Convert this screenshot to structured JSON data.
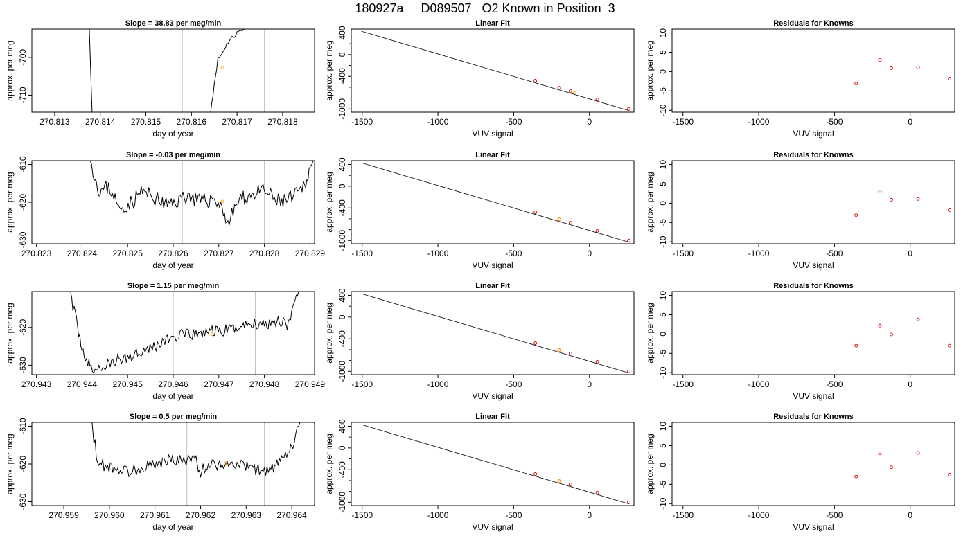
{
  "figure_title": "180927a     D089507   O2 Known in Position  3",
  "colors": {
    "line": "#000000",
    "marker_orange": "#ffa500",
    "marker_red": "#cc0000",
    "vline": "#bfbfbf"
  },
  "chart_data": [
    {
      "panel": "r0c0",
      "type": "line",
      "title": "Slope =  38.83  per meg/min",
      "xlabel": "day of year",
      "ylabel": "approx. per meg",
      "xlim": [
        270.8125,
        270.8187
      ],
      "ylim": [
        -714.5,
        -692.5
      ],
      "xticks": [
        270.813,
        270.814,
        270.815,
        270.816,
        270.817,
        270.818
      ],
      "xtick_labels": [
        "270.813",
        "270.814",
        "270.815",
        "270.816",
        "270.817",
        "270.818"
      ],
      "yticks": [
        -700,
        -710
      ],
      "ytick_labels": [
        "-700",
        "-710"
      ],
      "vlines": [
        270.8158,
        270.8176
      ],
      "trace_seed": 11,
      "trace_noise": 0.8,
      "segments": [
        {
          "x": [
            270.81376,
            270.81382
          ],
          "y": [
            -692.5,
            -714.5
          ]
        },
        {
          "x": [
            270.81642,
            270.8165,
            270.81658,
            270.81667,
            270.81675,
            270.81683,
            270.81692,
            270.817,
            270.81708,
            270.81717
          ],
          "y": [
            -714.5,
            -707,
            -700.5,
            -699,
            -697,
            -695.5,
            -694.5,
            -693.5,
            -692.8,
            -692.5
          ]
        }
      ],
      "points": [
        {
          "x": 270.81668,
          "y": -702.7,
          "color": "orange"
        }
      ]
    },
    {
      "panel": "r0c1",
      "type": "scatter+line",
      "title": "Linear Fit",
      "xlabel": "VUV signal",
      "ylabel": "approx. per meg",
      "xlim": [
        -1572,
        294
      ],
      "ylim": [
        -1060,
        470
      ],
      "xticks": [
        -1500,
        -1000,
        -500,
        0
      ],
      "xtick_labels": [
        "-1500",
        "-1000",
        "-500",
        "0"
      ],
      "yticks": [
        400,
        0,
        -400,
        -1000
      ],
      "ytick_labels": [
        "400",
        "0",
        "-400",
        "-1000"
      ],
      "fit_line": {
        "x": [
          -1505,
          260
        ],
        "y": [
          430,
          -1030
        ]
      },
      "points": [
        {
          "x": -357,
          "y": -480,
          "color": "red"
        },
        {
          "x": -200,
          "y": -610,
          "color": "red"
        },
        {
          "x": -125,
          "y": -672,
          "color": "red"
        },
        {
          "x": -100,
          "y": -696,
          "color": "orange"
        },
        {
          "x": 52,
          "y": -822,
          "color": "red"
        },
        {
          "x": 260,
          "y": -1000,
          "color": "red"
        }
      ]
    },
    {
      "panel": "r0c2",
      "type": "scatter",
      "title": "Residuals for Knowns",
      "xlabel": "VUV signal",
      "ylabel": "approx. per meg",
      "xlim": [
        -1572,
        294
      ],
      "ylim": [
        -10.5,
        11
      ],
      "xticks": [
        -1500,
        -1000,
        -500,
        0
      ],
      "xtick_labels": [
        "-1500",
        "-1000",
        "-500",
        "0"
      ],
      "yticks": [
        10,
        5,
        0,
        -5,
        -10
      ],
      "ytick_labels": [
        "10",
        "5",
        "0",
        "-5",
        "-10"
      ],
      "points": [
        {
          "x": -357,
          "y": -3.1,
          "color": "red"
        },
        {
          "x": -200,
          "y": 3.0,
          "color": "red"
        },
        {
          "x": -125,
          "y": 0.9,
          "color": "red"
        },
        {
          "x": 52,
          "y": 1.1,
          "color": "red"
        },
        {
          "x": 260,
          "y": -1.8,
          "color": "red"
        }
      ]
    },
    {
      "panel": "r1c0",
      "type": "line",
      "title": "Slope =  -0.03  per meg/min",
      "xlabel": "day of year",
      "ylabel": "approx. per meg",
      "xlim": [
        270.8229,
        270.8291
      ],
      "ylim": [
        -631,
        -609
      ],
      "xticks": [
        270.823,
        270.824,
        270.825,
        270.826,
        270.827,
        270.828,
        270.829
      ],
      "xtick_labels": [
        "270.823",
        "270.824",
        "270.825",
        "270.826",
        "270.827",
        "270.828",
        "270.829"
      ],
      "yticks": [
        -610,
        -620,
        -630
      ],
      "ytick_labels": [
        "-610",
        "-620",
        "-630"
      ],
      "vlines": [
        270.8262,
        270.828
      ],
      "trace_seed": 23,
      "trace_noise": 2.6,
      "segments": [
        {
          "x": [
            270.82418,
            270.82424,
            270.82434,
            270.82442,
            270.82458,
            270.8247,
            270.8248,
            270.82492,
            270.8251,
            270.8253,
            270.8256,
            270.8259,
            270.8263,
            270.8266,
            270.8269,
            270.8271,
            270.8272,
            270.8274,
            270.8277,
            270.828,
            270.8283,
            270.8286,
            270.8287,
            270.8288,
            270.82888,
            270.82898,
            270.82907
          ],
          "y": [
            -609,
            -611,
            -616,
            -617,
            -616,
            -618,
            -622,
            -621,
            -620,
            -617,
            -619,
            -621,
            -618,
            -620,
            -619,
            -622,
            -626,
            -620,
            -618,
            -617,
            -620,
            -619,
            -618,
            -617,
            -615,
            -612,
            -609
          ]
        }
      ],
      "points": [
        {
          "x": 270.82708,
          "y": -619.8,
          "color": "orange"
        }
      ]
    },
    {
      "panel": "r1c1",
      "type": "scatter+line",
      "title": "Linear Fit",
      "xlabel": "VUV signal",
      "ylabel": "approx. per meg",
      "xlim": [
        -1572,
        294
      ],
      "ylim": [
        -1060,
        470
      ],
      "xticks": [
        -1500,
        -1000,
        -500,
        0
      ],
      "xtick_labels": [
        "-1500",
        "-1000",
        "-500",
        "0"
      ],
      "yticks": [
        400,
        0,
        -400,
        -1000
      ],
      "ytick_labels": [
        "400",
        "0",
        "-400",
        "-1000"
      ],
      "fit_line": {
        "x": [
          -1505,
          260
        ],
        "y": [
          430,
          -1030
        ]
      },
      "points": [
        {
          "x": -357,
          "y": -480,
          "color": "red"
        },
        {
          "x": -200,
          "y": -610,
          "color": "red"
        },
        {
          "x": -200,
          "y": -612,
          "color": "orange"
        },
        {
          "x": -125,
          "y": -672,
          "color": "red"
        },
        {
          "x": 52,
          "y": -822,
          "color": "red"
        },
        {
          "x": 260,
          "y": -1000,
          "color": "red"
        }
      ]
    },
    {
      "panel": "r1c2",
      "type": "scatter",
      "title": "Residuals for Knowns",
      "xlabel": "VUV signal",
      "ylabel": "approx. per meg",
      "xlim": [
        -1572,
        294
      ],
      "ylim": [
        -10.5,
        11
      ],
      "xticks": [
        -1500,
        -1000,
        -500,
        0
      ],
      "xtick_labels": [
        "-1500",
        "-1000",
        "-500",
        "0"
      ],
      "yticks": [
        10,
        5,
        0,
        -5,
        -10
      ],
      "ytick_labels": [
        "10",
        "5",
        "0",
        "-5",
        "-10"
      ],
      "points": [
        {
          "x": -357,
          "y": -3.1,
          "color": "red"
        },
        {
          "x": -200,
          "y": 3.0,
          "color": "red"
        },
        {
          "x": -125,
          "y": 0.9,
          "color": "red"
        },
        {
          "x": 52,
          "y": 1.1,
          "color": "red"
        },
        {
          "x": 260,
          "y": -1.8,
          "color": "red"
        }
      ]
    },
    {
      "panel": "r2c0",
      "type": "line",
      "title": "Slope =  1.15  per meg/min",
      "xlabel": "day of year",
      "ylabel": "approx. per meg",
      "xlim": [
        270.9429,
        270.9491
      ],
      "ylim": [
        -632.5,
        -610.5
      ],
      "xticks": [
        270.943,
        270.944,
        270.945,
        270.946,
        270.947,
        270.948,
        270.949
      ],
      "xtick_labels": [
        "270.943",
        "270.944",
        "270.945",
        "270.946",
        "270.947",
        "270.948",
        "270.949"
      ],
      "yticks": [
        -620,
        -630
      ],
      "ytick_labels": [
        "-620",
        "-630"
      ],
      "vlines": [
        270.946,
        270.9478
      ],
      "trace_seed": 37,
      "trace_noise": 2.0,
      "segments": [
        {
          "x": [
            270.94375,
            270.9438,
            270.9439,
            270.944,
            270.9441,
            270.9442,
            270.9444,
            270.9447,
            270.945,
            270.9453,
            270.9456,
            270.9459,
            270.9462,
            270.9465,
            270.9468,
            270.9471,
            270.9474,
            270.9477,
            270.948,
            270.9483,
            270.9485,
            270.9486,
            270.94867,
            270.94875
          ],
          "y": [
            -610.5,
            -614,
            -620,
            -625,
            -629,
            -631,
            -631,
            -629,
            -628,
            -626,
            -625,
            -623,
            -622,
            -622,
            -621,
            -621,
            -620,
            -619,
            -619,
            -618,
            -619,
            -617,
            -614,
            -610.5
          ]
        }
      ],
      "points": [
        {
          "x": 270.94685,
          "y": -621.8,
          "color": "orange"
        }
      ]
    },
    {
      "panel": "r2c1",
      "type": "scatter+line",
      "title": "Linear Fit",
      "xlabel": "VUV signal",
      "ylabel": "approx. per meg",
      "xlim": [
        -1572,
        294
      ],
      "ylim": [
        -1060,
        470
      ],
      "xticks": [
        -1500,
        -1000,
        -500,
        0
      ],
      "xtick_labels": [
        "-1500",
        "-1000",
        "-500",
        "0"
      ],
      "yticks": [
        400,
        0,
        -400,
        -1000
      ],
      "ytick_labels": [
        "400",
        "0",
        "-400",
        "-1000"
      ],
      "fit_line": {
        "x": [
          -1505,
          260
        ],
        "y": [
          430,
          -1030
        ]
      },
      "points": [
        {
          "x": -357,
          "y": -480,
          "color": "red"
        },
        {
          "x": -200,
          "y": -610,
          "color": "red"
        },
        {
          "x": -200,
          "y": -612,
          "color": "orange"
        },
        {
          "x": -125,
          "y": -672,
          "color": "red"
        },
        {
          "x": 52,
          "y": -822,
          "color": "red"
        },
        {
          "x": 260,
          "y": -1000,
          "color": "red"
        }
      ]
    },
    {
      "panel": "r2c2",
      "type": "scatter",
      "title": "Residuals for Knowns",
      "xlabel": "VUV signal",
      "ylabel": "approx. per meg",
      "xlim": [
        -1572,
        294
      ],
      "ylim": [
        -10.5,
        11
      ],
      "xticks": [
        -1500,
        -1000,
        -500,
        0
      ],
      "xtick_labels": [
        "-1500",
        "-1000",
        "-500",
        "0"
      ],
      "yticks": [
        10,
        5,
        0,
        -5,
        -10
      ],
      "ytick_labels": [
        "10",
        "5",
        "0",
        "-5",
        "-10"
      ],
      "points": [
        {
          "x": -357,
          "y": -3.0,
          "color": "red"
        },
        {
          "x": -200,
          "y": 2.2,
          "color": "red"
        },
        {
          "x": -125,
          "y": -0.1,
          "color": "red"
        },
        {
          "x": 52,
          "y": 3.8,
          "color": "red"
        },
        {
          "x": 260,
          "y": -3.0,
          "color": "red"
        }
      ]
    },
    {
      "panel": "r3c0",
      "type": "line",
      "title": "Slope =  0.5  per meg/min",
      "xlabel": "day of year",
      "ylabel": "approx. per meg",
      "xlim": [
        270.9583,
        270.9645
      ],
      "ylim": [
        -631,
        -609
      ],
      "xticks": [
        270.959,
        270.96,
        270.961,
        270.962,
        270.963,
        270.964
      ],
      "xtick_labels": [
        "270.959",
        "270.960",
        "270.961",
        "270.962",
        "270.963",
        "270.964"
      ],
      "yticks": [
        -610,
        -620,
        -630
      ],
      "ytick_labels": [
        "-610",
        "-620",
        "-630"
      ],
      "vlines": [
        270.9617,
        270.9634
      ],
      "trace_seed": 53,
      "trace_noise": 2.0,
      "segments": [
        {
          "x": [
            270.95962,
            270.95966,
            270.95974,
            270.9598,
            270.9601,
            270.9604,
            270.9607,
            270.961,
            270.9613,
            270.9616,
            270.9619,
            270.962,
            270.9622,
            270.9625,
            270.9628,
            270.9631,
            270.9634,
            270.9636,
            270.9637,
            270.9638,
            270.96395,
            270.96405,
            270.96412,
            270.96418
          ],
          "y": [
            -609,
            -613,
            -619,
            -620,
            -621,
            -622,
            -621,
            -620,
            -619,
            -619,
            -619,
            -622,
            -620,
            -620,
            -620,
            -621,
            -622,
            -621,
            -620,
            -619,
            -617,
            -614,
            -611,
            -609
          ]
        }
      ],
      "points": [
        {
          "x": 270.96255,
          "y": -619.8,
          "color": "orange"
        }
      ]
    },
    {
      "panel": "r3c1",
      "type": "scatter+line",
      "title": "Linear Fit",
      "xlabel": "VUV signal",
      "ylabel": "approx. per meg",
      "xlim": [
        -1572,
        294
      ],
      "ylim": [
        -1060,
        470
      ],
      "xticks": [
        -1500,
        -1000,
        -500,
        0
      ],
      "xtick_labels": [
        "-1500",
        "-1000",
        "-500",
        "0"
      ],
      "yticks": [
        400,
        0,
        -400,
        -1000
      ],
      "ytick_labels": [
        "400",
        "0",
        "-400",
        "-1000"
      ],
      "fit_line": {
        "x": [
          -1505,
          260
        ],
        "y": [
          430,
          -1030
        ]
      },
      "points": [
        {
          "x": -357,
          "y": -480,
          "color": "red"
        },
        {
          "x": -200,
          "y": -610,
          "color": "red"
        },
        {
          "x": -200,
          "y": -612,
          "color": "orange"
        },
        {
          "x": -125,
          "y": -672,
          "color": "red"
        },
        {
          "x": 52,
          "y": -822,
          "color": "red"
        },
        {
          "x": 260,
          "y": -1000,
          "color": "red"
        }
      ]
    },
    {
      "panel": "r3c2",
      "type": "scatter",
      "title": "Residuals for Knowns",
      "xlabel": "VUV signal",
      "ylabel": "approx. per meg",
      "xlim": [
        -1572,
        294
      ],
      "ylim": [
        -10.5,
        11
      ],
      "xticks": [
        -1500,
        -1000,
        -500,
        0
      ],
      "xtick_labels": [
        "-1500",
        "-1000",
        "-500",
        "0"
      ],
      "yticks": [
        10,
        5,
        0,
        -5,
        -10
      ],
      "ytick_labels": [
        "10",
        "5",
        "0",
        "-5",
        "-10"
      ],
      "points": [
        {
          "x": -357,
          "y": -3.0,
          "color": "red"
        },
        {
          "x": -200,
          "y": 3.0,
          "color": "red"
        },
        {
          "x": -125,
          "y": -0.6,
          "color": "red"
        },
        {
          "x": 52,
          "y": 3.1,
          "color": "red"
        },
        {
          "x": 260,
          "y": -2.5,
          "color": "red"
        }
      ]
    }
  ]
}
